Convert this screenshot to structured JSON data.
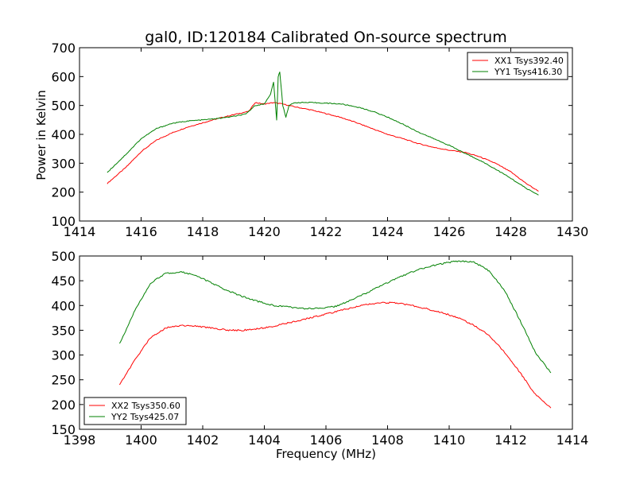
{
  "chart_data": [
    {
      "type": "line",
      "title": "gal0, ID:120184 Calibrated On-source spectrum",
      "xlabel": "",
      "ylabel": "Power in Kelvin",
      "xlim": [
        1414,
        1430
      ],
      "ylim": [
        100,
        700
      ],
      "xticks": [
        "1414",
        "1416",
        "1418",
        "1420",
        "1422",
        "1424",
        "1426",
        "1428",
        "1430"
      ],
      "yticks": [
        "100",
        "200",
        "300",
        "400",
        "500",
        "600",
        "700"
      ],
      "grid": false,
      "legend_position": "top-right",
      "series": [
        {
          "name": "XX1 Tsys392.40",
          "color": "#ff0000",
          "x": [
            1414.9,
            1415.5,
            1416.0,
            1416.5,
            1417.0,
            1417.5,
            1418.0,
            1418.5,
            1419.0,
            1419.5,
            1419.7,
            1420.0,
            1420.3,
            1420.6,
            1420.8,
            1421.0,
            1421.5,
            1422.0,
            1422.5,
            1423.0,
            1423.5,
            1424.0,
            1424.5,
            1425.0,
            1425.5,
            1426.0,
            1426.5,
            1427.0,
            1427.5,
            1428.0,
            1428.5,
            1428.9
          ],
          "y": [
            230,
            285,
            340,
            380,
            405,
            425,
            440,
            455,
            468,
            480,
            510,
            505,
            510,
            505,
            500,
            495,
            485,
            472,
            458,
            440,
            420,
            400,
            385,
            368,
            355,
            345,
            338,
            322,
            300,
            270,
            230,
            203
          ]
        },
        {
          "name": "YY1 Tsys416.30",
          "color": "#008000",
          "x": [
            1414.9,
            1415.5,
            1416.0,
            1416.5,
            1417.0,
            1417.5,
            1418.0,
            1418.5,
            1419.0,
            1419.4,
            1419.7,
            1420.0,
            1420.2,
            1420.3,
            1420.4,
            1420.45,
            1420.5,
            1420.6,
            1420.7,
            1420.8,
            1421.0,
            1421.5,
            1422.0,
            1422.5,
            1423.0,
            1423.5,
            1424.0,
            1424.5,
            1425.0,
            1425.5,
            1426.0,
            1426.5,
            1427.0,
            1427.5,
            1428.0,
            1428.5,
            1428.9
          ],
          "y": [
            268,
            330,
            385,
            420,
            438,
            446,
            450,
            455,
            462,
            470,
            500,
            505,
            540,
            580,
            450,
            600,
            615,
            500,
            460,
            500,
            510,
            510,
            508,
            505,
            495,
            480,
            460,
            435,
            408,
            385,
            362,
            335,
            310,
            280,
            248,
            213,
            190
          ]
        }
      ]
    },
    {
      "type": "line",
      "title": "",
      "xlabel": "Frequency (MHz)",
      "ylabel": "",
      "xlim": [
        1398,
        1414
      ],
      "ylim": [
        150,
        500
      ],
      "xticks": [
        "1398",
        "1400",
        "1402",
        "1404",
        "1406",
        "1408",
        "1410",
        "1412",
        "1414"
      ],
      "yticks": [
        "150",
        "200",
        "250",
        "300",
        "350",
        "400",
        "450",
        "500"
      ],
      "grid": false,
      "legend_position": "bottom-left",
      "series": [
        {
          "name": "XX2 Tsys350.60",
          "color": "#ff0000",
          "x": [
            1399.3,
            1399.8,
            1400.3,
            1400.8,
            1401.3,
            1401.8,
            1402.3,
            1402.8,
            1403.3,
            1403.8,
            1404.3,
            1404.8,
            1405.3,
            1405.8,
            1406.3,
            1406.8,
            1407.3,
            1407.8,
            1408.3,
            1408.8,
            1409.3,
            1409.8,
            1410.3,
            1410.8,
            1411.3,
            1411.8,
            1412.3,
            1412.8,
            1413.3
          ],
          "y": [
            240,
            290,
            335,
            355,
            360,
            358,
            355,
            350,
            350,
            353,
            358,
            365,
            372,
            380,
            387,
            395,
            402,
            406,
            405,
            400,
            393,
            385,
            375,
            360,
            340,
            305,
            265,
            220,
            193
          ]
        },
        {
          "name": "YY2 Tsys425.07",
          "color": "#008000",
          "x": [
            1399.3,
            1399.8,
            1400.3,
            1400.8,
            1401.3,
            1401.8,
            1402.3,
            1402.8,
            1403.3,
            1403.8,
            1404.3,
            1404.8,
            1405.3,
            1405.8,
            1406.3,
            1406.8,
            1407.3,
            1407.8,
            1408.3,
            1408.8,
            1409.3,
            1409.8,
            1410.3,
            1410.8,
            1411.3,
            1411.8,
            1412.3,
            1412.8,
            1413.3
          ],
          "y": [
            322,
            390,
            445,
            465,
            468,
            460,
            445,
            430,
            418,
            408,
            400,
            397,
            394,
            394,
            398,
            410,
            425,
            440,
            455,
            468,
            478,
            485,
            490,
            488,
            470,
            430,
            370,
            305,
            264
          ]
        }
      ]
    }
  ]
}
